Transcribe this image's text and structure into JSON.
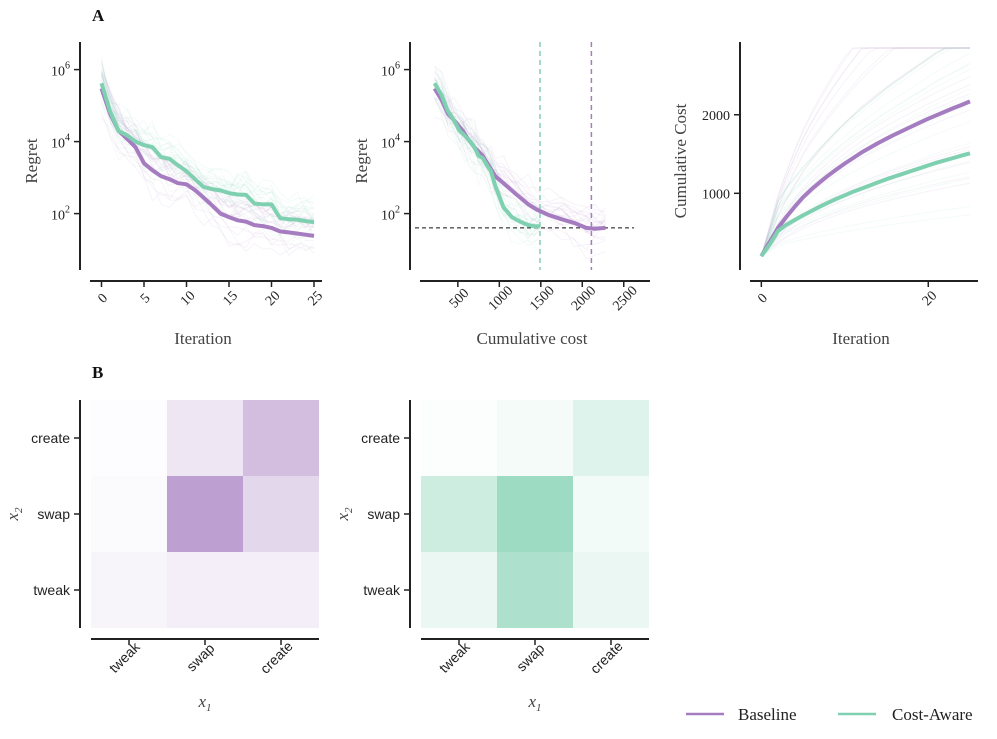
{
  "panels": {
    "a": "A",
    "b": "B"
  },
  "colors": {
    "baseline": "#a57cc0",
    "cost_aware": "#7fd0b0"
  },
  "legend": {
    "baseline": "Baseline",
    "cost_aware": "Cost-Aware"
  },
  "chart_data": [
    {
      "type": "line",
      "id": "regret_vs_iter",
      "xlabel": "Iteration",
      "ylabel": "Regret",
      "yscale": "log",
      "xlim": [
        -1,
        25
      ],
      "ylim_log10": [
        0.6,
        6.6
      ],
      "xticks": [
        0,
        5,
        10,
        15,
        20,
        25
      ],
      "yticks": [
        {
          "exp": 2,
          "label": "10",
          "sup": "2"
        },
        {
          "exp": 4,
          "label": "10",
          "sup": "4"
        },
        {
          "exp": 6,
          "label": "10",
          "sup": "6"
        }
      ],
      "series": [
        {
          "name": "Baseline",
          "x": [
            0,
            1,
            2,
            3,
            4,
            5,
            6,
            7,
            8,
            9,
            10,
            11,
            12,
            13,
            14,
            15,
            16,
            17,
            18,
            19,
            20,
            21,
            22,
            23,
            24,
            25
          ],
          "y": [
            300000,
            60000,
            20000,
            12000,
            7000,
            2500,
            1600,
            1100,
            900,
            700,
            650,
            450,
            280,
            170,
            100,
            80,
            65,
            60,
            48,
            45,
            40,
            32,
            30,
            28,
            26,
            24
          ]
        },
        {
          "name": "Cost-Aware",
          "x": [
            0,
            1,
            2,
            3,
            4,
            5,
            6,
            7,
            8,
            9,
            10,
            11,
            12,
            13,
            14,
            15,
            16,
            17,
            18,
            19,
            20,
            21,
            22,
            23,
            24,
            25
          ],
          "y": [
            420000,
            70000,
            20000,
            15000,
            10000,
            8000,
            7000,
            3700,
            3300,
            2200,
            1500,
            900,
            550,
            480,
            440,
            370,
            340,
            330,
            190,
            180,
            180,
            75,
            70,
            68,
            62,
            58
          ]
        }
      ]
    },
    {
      "type": "line",
      "id": "regret_vs_cost",
      "xlabel": "Cumulative cost",
      "ylabel": "Regret",
      "yscale": "log",
      "xlim": [
        80,
        2720
      ],
      "ylim_log10": [
        0.6,
        6.6
      ],
      "xticks": [
        500,
        1000,
        1500,
        2000,
        2500
      ],
      "yticks": [
        {
          "exp": 2,
          "label": "10",
          "sup": "2"
        },
        {
          "exp": 4,
          "label": "10",
          "sup": "4"
        },
        {
          "exp": 6,
          "label": "10",
          "sup": "6"
        }
      ],
      "hline": 40,
      "vlines": [
        {
          "series": "Cost-Aware",
          "x": 1490
        },
        {
          "series": "Baseline",
          "x": 2110
        }
      ],
      "series": [
        {
          "name": "Baseline",
          "x": [
            220,
            300,
            380,
            450,
            560,
            620,
            700,
            800,
            900,
            950,
            1050,
            1200,
            1350,
            1450,
            1600,
            1750,
            1900,
            2050,
            2150,
            2280
          ],
          "y": [
            300000,
            150000,
            60000,
            40000,
            20000,
            12000,
            7000,
            4000,
            1700,
            1100,
            700,
            350,
            180,
            130,
            90,
            70,
            55,
            40,
            38,
            40
          ]
        },
        {
          "name": "Cost-Aware",
          "x": [
            220,
            300,
            380,
            450,
            520,
            580,
            650,
            700,
            750,
            800,
            850,
            900,
            950,
            1000,
            1050,
            1150,
            1250,
            1350,
            1420,
            1490
          ],
          "y": [
            420000,
            200000,
            70000,
            40000,
            20000,
            15000,
            10000,
            7000,
            4000,
            3500,
            2200,
            1500,
            600,
            300,
            150,
            80,
            60,
            48,
            45,
            44
          ]
        }
      ]
    },
    {
      "type": "line",
      "id": "cost_vs_iter",
      "xlabel": "Iteration",
      "ylabel": "Cumulative Cost",
      "xlim": [
        -1,
        25
      ],
      "ylim": [
        100,
        2850
      ],
      "xticks": [
        0,
        20
      ],
      "yticks": [
        1000,
        2000
      ],
      "series": [
        {
          "name": "Baseline",
          "x": [
            0,
            1,
            2,
            3,
            4,
            5,
            6,
            7,
            8,
            9,
            10,
            11,
            12,
            13,
            14,
            15,
            16,
            17,
            18,
            19,
            20,
            21,
            22,
            23,
            24,
            25
          ],
          "y": [
            200,
            380,
            560,
            700,
            830,
            950,
            1050,
            1140,
            1225,
            1305,
            1380,
            1450,
            1520,
            1580,
            1640,
            1695,
            1750,
            1800,
            1850,
            1900,
            1950,
            1995,
            2040,
            2085,
            2125,
            2170
          ]
        },
        {
          "name": "Cost-Aware",
          "x": [
            0,
            1,
            2,
            3,
            4,
            5,
            6,
            7,
            8,
            9,
            10,
            11,
            12,
            13,
            14,
            15,
            16,
            17,
            18,
            19,
            20,
            21,
            22,
            23,
            24,
            25
          ],
          "y": [
            200,
            350,
            520,
            600,
            660,
            720,
            775,
            830,
            880,
            930,
            975,
            1020,
            1060,
            1100,
            1140,
            1180,
            1215,
            1250,
            1285,
            1320,
            1355,
            1390,
            1420,
            1450,
            1480,
            1510
          ]
        }
      ]
    },
    {
      "type": "heatmap",
      "id": "baseline_heatmap",
      "xlabel": "x",
      "xlabel_sub": "1",
      "ylabel": "x",
      "ylabel_sub": "2",
      "x_categories": [
        "tweak",
        "swap",
        "create"
      ],
      "y_categories": [
        "create",
        "swap",
        "tweak"
      ],
      "values": [
        [
          0.0,
          0.18,
          0.5
        ],
        [
          0.02,
          0.75,
          0.3
        ],
        [
          0.06,
          0.12,
          0.12
        ]
      ],
      "color": "#a57cc0"
    },
    {
      "type": "heatmap",
      "id": "cost_aware_heatmap",
      "xlabel": "x",
      "xlabel_sub": "1",
      "ylabel": "x",
      "ylabel_sub": "2",
      "x_categories": [
        "tweak",
        "swap",
        "create"
      ],
      "y_categories": [
        "create",
        "swap",
        "tweak"
      ],
      "values": [
        [
          0.0,
          0.06,
          0.25
        ],
        [
          0.38,
          0.78,
          0.08
        ],
        [
          0.15,
          0.65,
          0.15
        ]
      ],
      "color": "#7fd0b0"
    }
  ]
}
